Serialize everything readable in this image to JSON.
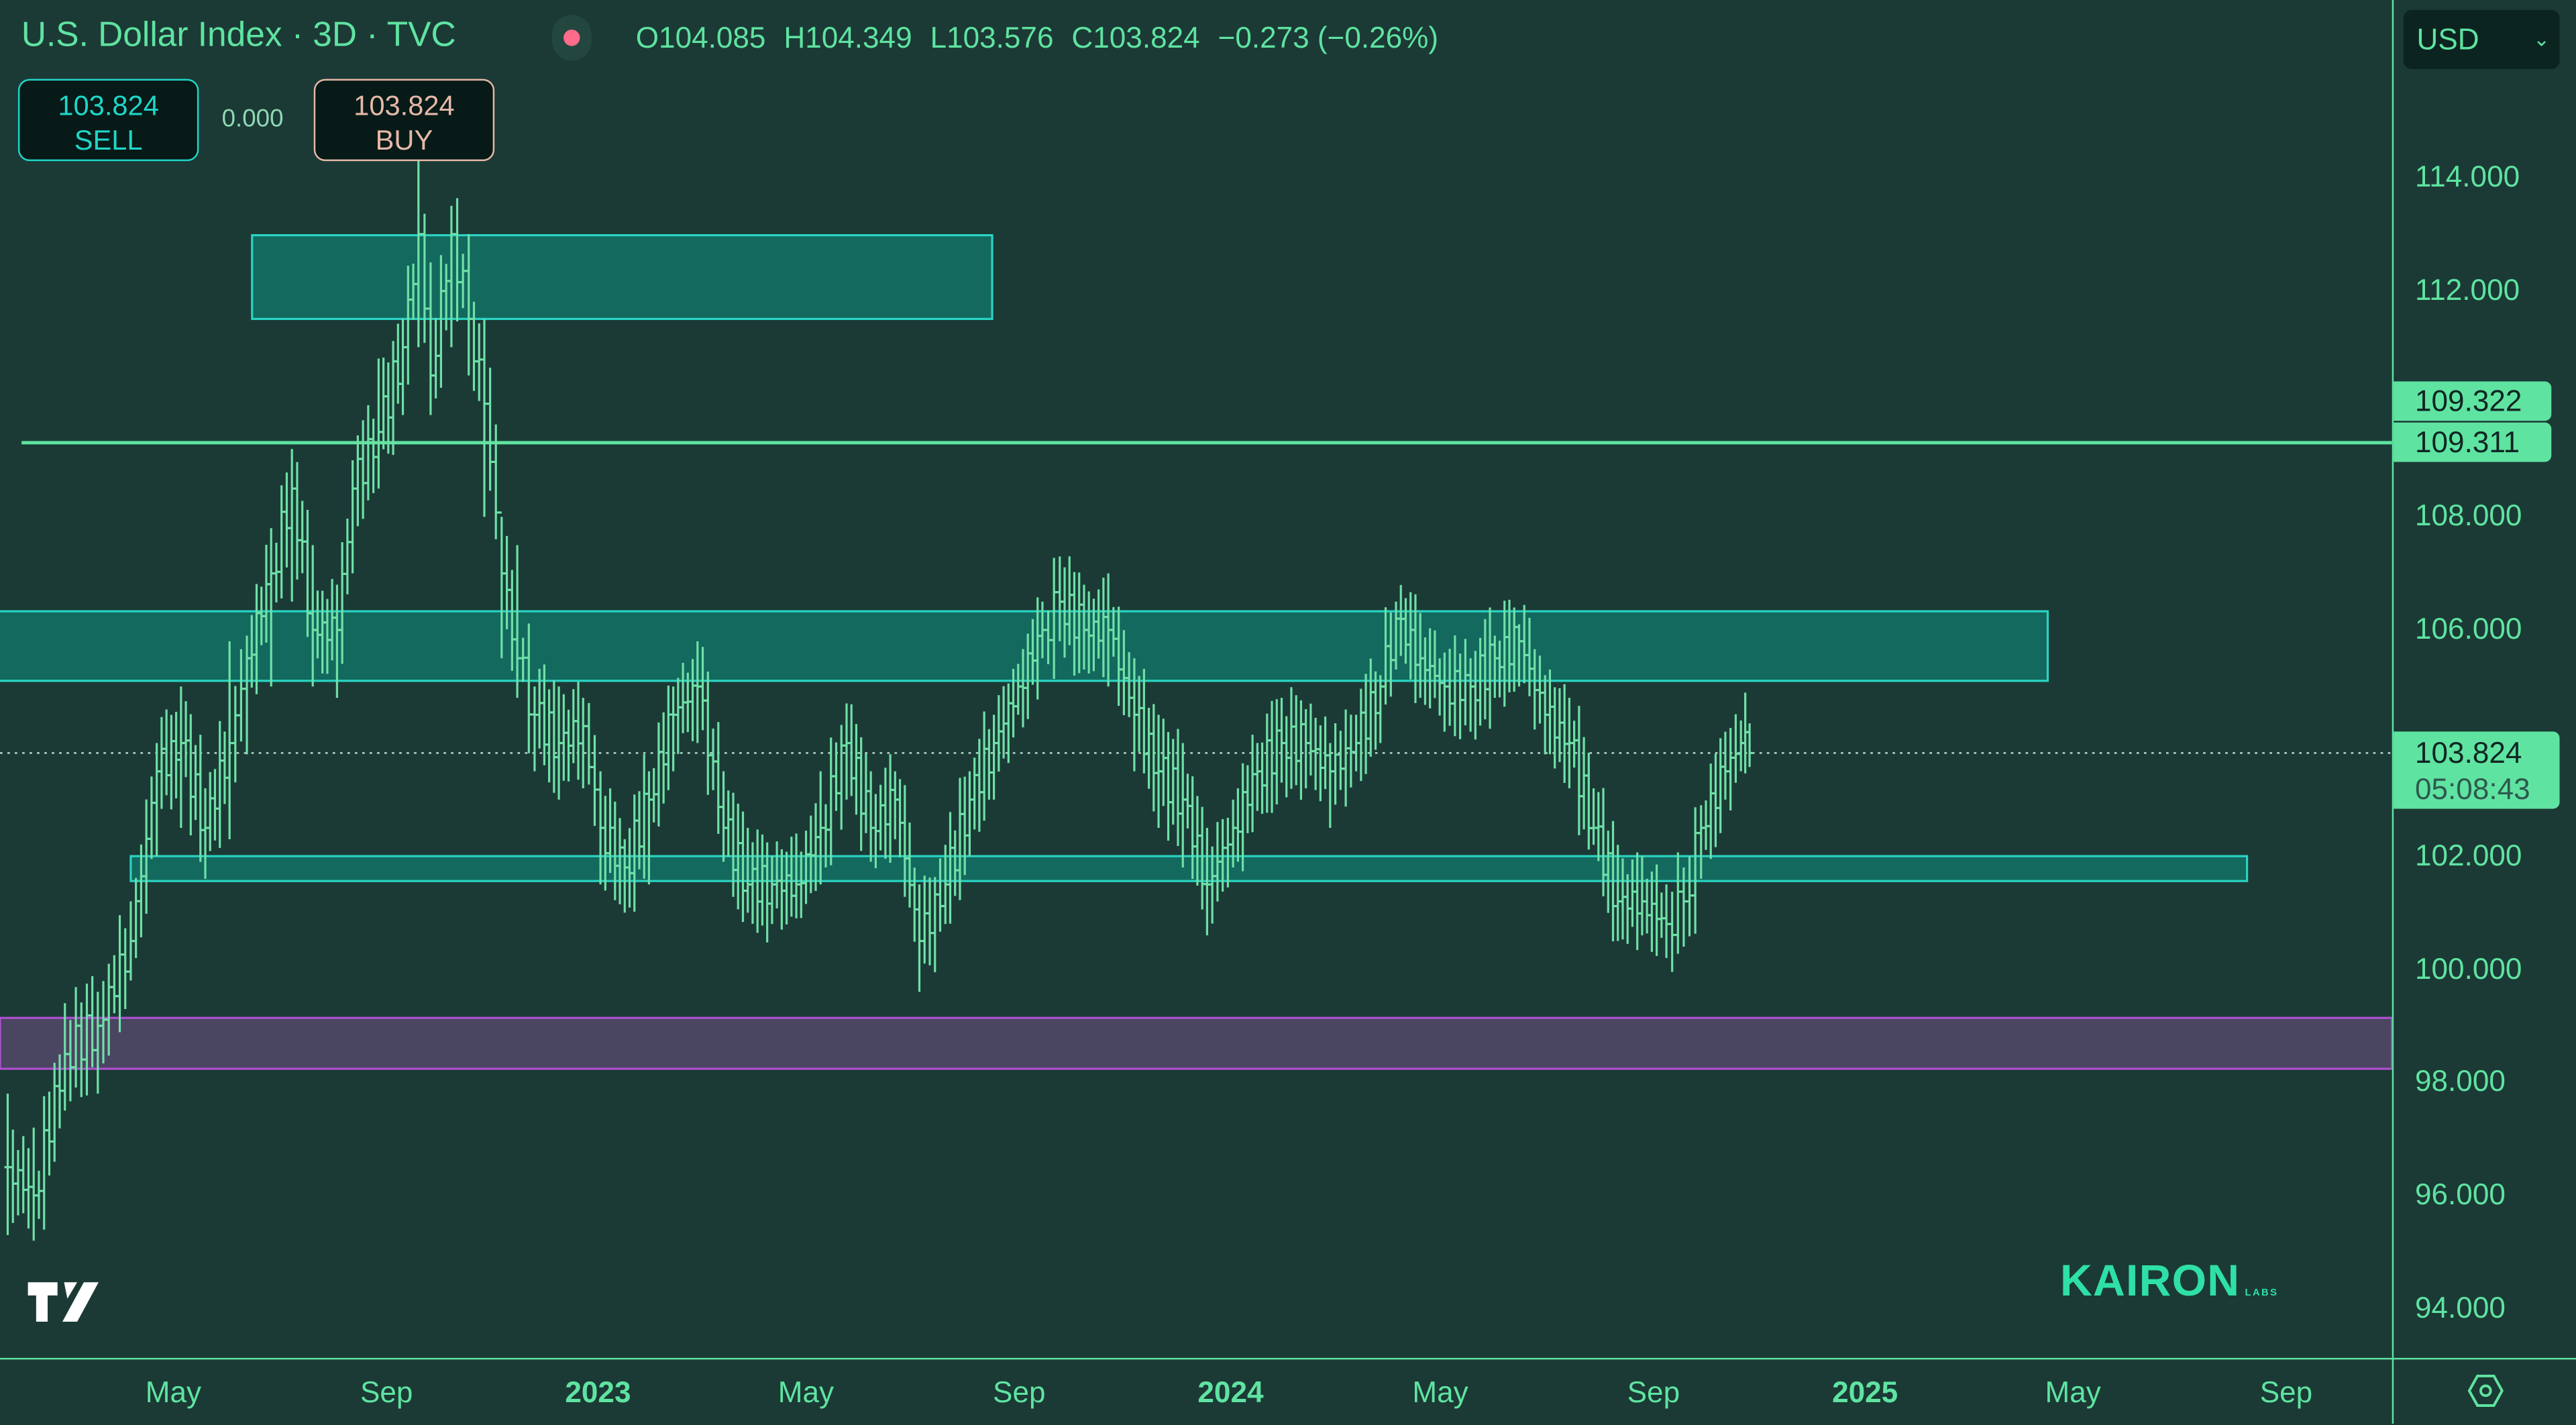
{
  "header": {
    "symbol_title": "U.S. Dollar Index · 3D · TVC",
    "market_status_color": "#ff6b8a",
    "open": "O104.085",
    "high": "H104.349",
    "low": "L103.576",
    "close": "C103.824",
    "change": "−0.273 (−0.26%)"
  },
  "trade": {
    "sell_price": "103.824",
    "sell_label": "SELL",
    "spread": "0.000",
    "buy_price": "103.824",
    "buy_label": "BUY"
  },
  "currency_select": {
    "value": "USD"
  },
  "price_labels": {
    "line_a": "109.322",
    "line_b": "109.311",
    "last_price": "103.824",
    "countdown": "05:08:43"
  },
  "watermark": {
    "brand": "KAIRON",
    "sub": "LABS",
    "tv_logo": "TV"
  },
  "colors": {
    "background": "#1b3a35",
    "bars": "#6fe0a8",
    "zone_fill": "#127a6b",
    "zone_border": "#2ad4c4",
    "purple_fill": "#4a4560",
    "purple_border": "#b050d0",
    "text": "#5fe3a1"
  },
  "chart_data": {
    "type": "ohlc",
    "ylim": [
      93.5,
      116
    ],
    "yticks": [
      {
        "v": 114,
        "label": "114.000"
      },
      {
        "v": 112,
        "label": "112.000"
      },
      {
        "v": 108,
        "label": "108.000"
      },
      {
        "v": 106,
        "label": "106.000"
      },
      {
        "v": 102,
        "label": "102.000"
      },
      {
        "v": 100,
        "label": "100.000"
      },
      {
        "v": 98,
        "label": "98.000"
      },
      {
        "v": 96,
        "label": "96.000"
      },
      {
        "v": 94,
        "label": "94.000"
      }
    ],
    "xticks": [
      {
        "date": "2022-05-01",
        "label": "May",
        "year": false
      },
      {
        "date": "2022-09-01",
        "label": "Sep",
        "year": false
      },
      {
        "date": "2023-01-01",
        "label": "2023",
        "year": true
      },
      {
        "date": "2023-05-01",
        "label": "May",
        "year": false
      },
      {
        "date": "2023-09-01",
        "label": "Sep",
        "year": false
      },
      {
        "date": "2024-01-01",
        "label": "2024",
        "year": true
      },
      {
        "date": "2024-05-01",
        "label": "May",
        "year": false
      },
      {
        "date": "2024-09-01",
        "label": "Sep",
        "year": false
      },
      {
        "date": "2025-01-01",
        "label": "2025",
        "year": true
      },
      {
        "date": "2025-05-01",
        "label": "May",
        "year": false
      },
      {
        "date": "2025-09-01",
        "label": "Sep",
        "year": false
      }
    ],
    "series": [
      [
        "2022-02-02",
        96.5,
        95.3,
        97.8
      ],
      [
        "2022-02-17",
        96.0,
        95.2,
        97.2
      ],
      [
        "2022-03-07",
        98.5,
        97.5,
        99.4
      ],
      [
        "2022-03-26",
        99.0,
        97.8,
        99.6
      ],
      [
        "2022-04-14",
        100.5,
        99.8,
        101.2
      ],
      [
        "2022-04-29",
        103.5,
        102.0,
        104.0
      ],
      [
        "2022-05-13",
        104.0,
        102.5,
        105.0
      ],
      [
        "2022-05-27",
        102.5,
        101.6,
        103.2
      ],
      [
        "2022-06-10",
        104.0,
        102.3,
        105.8
      ],
      [
        "2022-06-20",
        105.5,
        103.8,
        105.9
      ],
      [
        "2022-07-04",
        107.0,
        105.0,
        107.8
      ],
      [
        "2022-07-16",
        108.5,
        106.5,
        109.2
      ],
      [
        "2022-07-28",
        106.0,
        105.0,
        107.5
      ],
      [
        "2022-08-11",
        106.0,
        104.8,
        106.8
      ],
      [
        "2022-08-20",
        108.5,
        107.0,
        109.0
      ],
      [
        "2022-09-04",
        109.5,
        108.5,
        110.8
      ],
      [
        "2022-09-18",
        111.0,
        109.8,
        111.5
      ],
      [
        "2022-09-27",
        113.0,
        111.0,
        114.5
      ],
      [
        "2022-10-04",
        110.5,
        109.8,
        112.5
      ],
      [
        "2022-10-16",
        113.0,
        111.0,
        113.5
      ],
      [
        "2022-10-26",
        111.5,
        110.5,
        113.0
      ],
      [
        "2022-11-04",
        110.0,
        108.0,
        111.5
      ],
      [
        "2022-11-14",
        107.0,
        105.5,
        108.0
      ],
      [
        "2022-11-23",
        105.5,
        104.8,
        107.5
      ],
      [
        "2022-12-03",
        104.5,
        103.5,
        105.0
      ],
      [
        "2022-12-17",
        104.0,
        103.0,
        105.0
      ],
      [
        "2022-12-31",
        104.3,
        103.2,
        104.8
      ],
      [
        "2023-01-10",
        102.5,
        101.5,
        103.5
      ],
      [
        "2023-01-24",
        101.8,
        101.0,
        102.3
      ],
      [
        "2023-02-07",
        103.0,
        101.5,
        103.5
      ],
      [
        "2023-02-21",
        104.5,
        103.5,
        105.0
      ],
      [
        "2023-03-07",
        105.0,
        104.0,
        105.8
      ],
      [
        "2023-03-22",
        102.5,
        101.9,
        103.5
      ],
      [
        "2023-04-05",
        101.5,
        101.0,
        102.5
      ],
      [
        "2023-04-19",
        101.5,
        100.8,
        102.0
      ],
      [
        "2023-05-03",
        101.5,
        100.9,
        102.4
      ],
      [
        "2023-05-17",
        102.5,
        101.5,
        103.5
      ],
      [
        "2023-06-01",
        104.0,
        103.0,
        104.7
      ],
      [
        "2023-06-15",
        102.5,
        101.9,
        103.5
      ],
      [
        "2023-06-29",
        103.0,
        102.3,
        103.5
      ],
      [
        "2023-07-13",
        100.5,
        99.6,
        101.5
      ],
      [
        "2023-07-28",
        101.5,
        100.8,
        102.2
      ],
      [
        "2023-08-11",
        103.0,
        102.0,
        103.5
      ],
      [
        "2023-08-25",
        104.0,
        103.0,
        104.5
      ],
      [
        "2023-09-08",
        105.0,
        104.5,
        105.4
      ],
      [
        "2023-09-22",
        106.0,
        105.5,
        106.5
      ],
      [
        "2023-10-02",
        106.5,
        105.8,
        107.3
      ],
      [
        "2023-10-16",
        106.0,
        105.3,
        106.8
      ],
      [
        "2023-10-30",
        106.0,
        105.0,
        107.0
      ],
      [
        "2023-11-14",
        104.5,
        103.5,
        105.5
      ],
      [
        "2023-11-28",
        103.5,
        102.5,
        104.5
      ],
      [
        "2023-12-12",
        103.0,
        101.8,
        104.0
      ],
      [
        "2023-12-26",
        101.5,
        100.6,
        102.5
      ],
      [
        "2024-01-10",
        102.5,
        101.8,
        103.0
      ],
      [
        "2024-01-24",
        103.5,
        102.8,
        104.0
      ],
      [
        "2024-02-07",
        104.0,
        103.3,
        104.8
      ],
      [
        "2024-02-21",
        104.0,
        103.2,
        104.6
      ],
      [
        "2024-03-06",
        103.5,
        102.5,
        104.0
      ],
      [
        "2024-03-21",
        104.0,
        103.5,
        104.5
      ],
      [
        "2024-04-04",
        105.0,
        104.0,
        105.2
      ],
      [
        "2024-04-13",
        106.2,
        105.3,
        106.5
      ],
      [
        "2024-04-27",
        105.5,
        104.8,
        106.3
      ],
      [
        "2024-05-11",
        105.0,
        104.2,
        105.6
      ],
      [
        "2024-05-26",
        105.0,
        104.2,
        105.5
      ],
      [
        "2024-06-09",
        105.5,
        104.8,
        105.9
      ],
      [
        "2024-06-23",
        105.8,
        105.0,
        106.1
      ],
      [
        "2024-07-08",
        104.5,
        103.8,
        105.2
      ],
      [
        "2024-07-22",
        104.0,
        103.2,
        104.8
      ],
      [
        "2024-08-05",
        102.5,
        102.2,
        103.2
      ],
      [
        "2024-08-19",
        101.2,
        100.5,
        102.2
      ],
      [
        "2024-09-02",
        101.2,
        100.6,
        102.0
      ],
      [
        "2024-09-16",
        100.8,
        100.2,
        101.5
      ],
      [
        "2024-09-26",
        101.2,
        100.4,
        101.8
      ],
      [
        "2024-10-06",
        102.5,
        101.6,
        102.9
      ],
      [
        "2024-10-20",
        103.5,
        103.0,
        104.2
      ],
      [
        "2024-10-29",
        104.0,
        103.5,
        104.4
      ],
      [
        "2024-11-03",
        103.824,
        103.576,
        104.349
      ]
    ],
    "series_fields": [
      "date",
      "close",
      "low",
      "high"
    ],
    "zones": [
      {
        "kind": "box",
        "top": 112.98,
        "bottom": 111.5,
        "start": "2022-06-23",
        "end": "2023-08-24"
      },
      {
        "kind": "box",
        "top": 106.33,
        "bottom": 105.1,
        "start": "2022-01-20",
        "end": "2025-04-24"
      },
      {
        "kind": "box",
        "top": 102.0,
        "bottom": 101.56,
        "start": "2022-04-14",
        "end": "2025-08-17"
      },
      {
        "kind": "band",
        "top": 99.14,
        "bottom": 98.24
      }
    ],
    "hline": {
      "value": 109.311,
      "start": "2022-02-10"
    },
    "last_price": 103.824
  }
}
